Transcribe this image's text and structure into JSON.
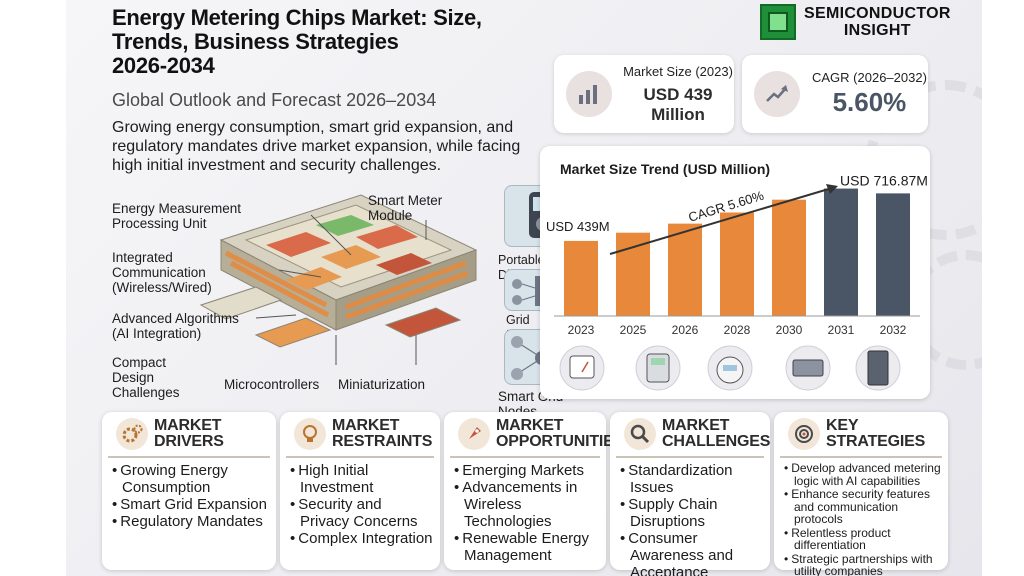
{
  "header": {
    "title": "Energy Metering Chips Market: Size,\nTrends, Business Strategies\n2026-2034",
    "subtitle": "Global Outlook and Forecast 2026–2034",
    "description": "Growing energy consumption, smart grid expansion, and regulatory mandates drive market expansion, while facing high initial investment and security challenges."
  },
  "logo": {
    "text": "SEMICONDUCTOR\nINSIGHT"
  },
  "stats": {
    "market_size": {
      "label": "Market Size (2023)",
      "value": "USD 439 Million",
      "icon": "bar-chart-icon"
    },
    "cagr": {
      "label": "CAGR (2026–2032)",
      "value": "5.60%",
      "icon": "trend-arrow-icon"
    }
  },
  "chip_labels": {
    "emp": "Energy Measurement\nProcessing Unit",
    "smart_meter": "Smart Meter\nModule",
    "comm": "Integrated\nCommunication\n(Wireless/Wired)",
    "algo": "Advanced Algorithms\n(AI Integration)",
    "compact": "Compact\nDesign\nChallenges",
    "micro": "Microcontrollers",
    "mini": "Miniaturization",
    "portable": "Portable Diagnostics",
    "grid": "Grid Management",
    "nodes": "Smart Grid Nodes"
  },
  "chart_data": {
    "type": "bar",
    "title": "Market Size Trend (USD Million)",
    "categories": [
      "2023",
      "2025",
      "2026",
      "2028",
      "2030",
      "2031",
      "2032"
    ],
    "values": [
      439,
      487,
      540,
      605,
      680,
      745,
      716.87
    ],
    "ylim": [
      0,
      760
    ],
    "annotations": {
      "start": "USD 439M",
      "end": "USD 716.87M",
      "cagr": "CAGR 5.60%"
    },
    "colors": {
      "orange": "#e8883a",
      "dark": "#4a5566"
    }
  },
  "sections": [
    {
      "icon": "gears-icon",
      "title": "MARKET DRIVERS",
      "items": [
        "Growing Energy Consumption",
        "Smart Grid Expansion",
        "Regulatory Mandates"
      ]
    },
    {
      "icon": "lightbulb-icon",
      "title": "MARKET\nRESTRAINTS",
      "items": [
        "High Initial Investment",
        "Security and Privacy Concerns",
        "Complex Integration"
      ]
    },
    {
      "icon": "rocket-icon",
      "title": "MARKET\nOPPORTUNITIES",
      "items": [
        "Emerging Markets",
        "Advancements in Wireless Technologies",
        "Renewable Energy Management"
      ]
    },
    {
      "icon": "magnifier-icon",
      "title": "MARKET\nCHALLENGES",
      "items": [
        "Standardization Issues",
        "Supply Chain Disruptions",
        "Consumer Awareness and Acceptance"
      ]
    },
    {
      "icon": "target-icon",
      "title": "KEY STRATEGIES",
      "items": [
        "Develop advanced metering logic with AI capabilities",
        "Enhance security features and communication protocols",
        "Relentless product differentiation",
        "Strategic partnerships with utility companies"
      ]
    }
  ],
  "colors": {
    "accent_dark": "#2c2c2c",
    "bar_orange": "#e8883a",
    "bar_slate": "#4a5566",
    "logo_green": "#1f8f3a"
  }
}
